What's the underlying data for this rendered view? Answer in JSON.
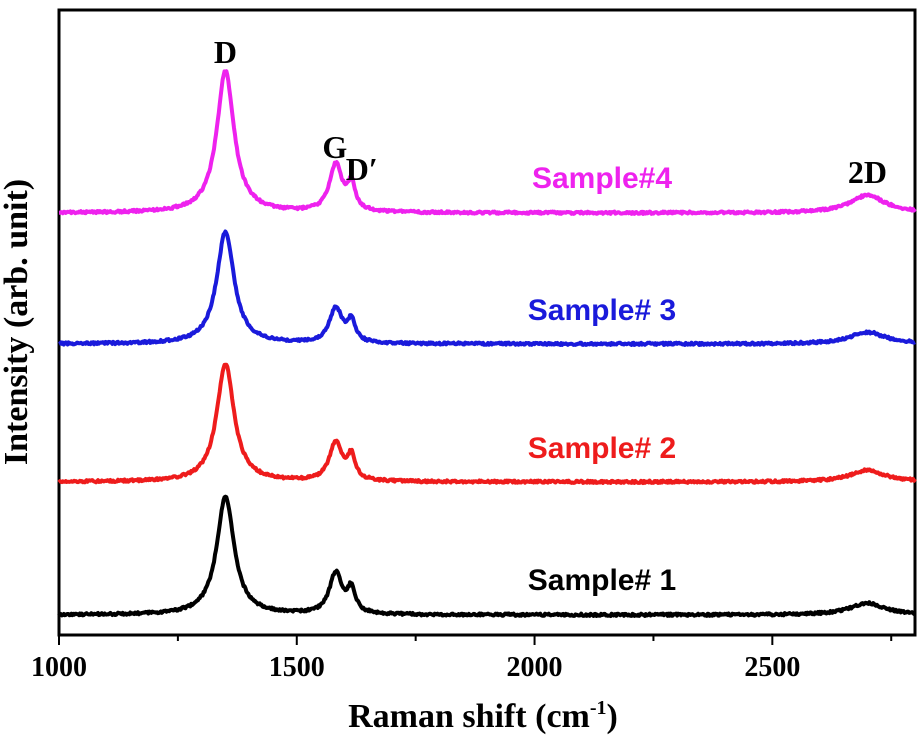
{
  "chart_data": {
    "type": "line",
    "title": "",
    "xlabel": "Raman shift (cm",
    "xlabel_sup": "-1",
    "xlabel_close": ")",
    "ylabel": "Intensity (arb. unit)",
    "xlim": [
      1000,
      2800
    ],
    "x_ticks": [
      1000,
      1500,
      2000,
      2500
    ],
    "x_tick_labels": [
      "1000",
      "1500",
      "2000",
      "2500"
    ],
    "y_ticks_shown": false,
    "grid": false,
    "legend": "inline labels",
    "peak_labels": [
      {
        "text": "D",
        "x": 1350
      },
      {
        "text": "G",
        "x": 1580
      },
      {
        "text": "D′",
        "x": 1620
      },
      {
        "text": "2D",
        "x": 2700
      }
    ],
    "peaks_cm-1": {
      "D": 1350,
      "G": 1582,
      "D_prime": 1615,
      "2D": 2700
    },
    "series": [
      {
        "name": "Sample# 1",
        "color": "#000000",
        "baseline": 0.0,
        "D": 1.0,
        "G": 0.35,
        "Dp": 0.2,
        "twoD": 0.1
      },
      {
        "name": "Sample# 2",
        "color": "#ee1c1c",
        "baseline": 1.1,
        "D": 1.0,
        "G": 0.33,
        "Dp": 0.2,
        "twoD": 0.1
      },
      {
        "name": "Sample# 3",
        "color": "#1a1adb",
        "baseline": 2.2,
        "D": 0.95,
        "G": 0.3,
        "Dp": 0.18,
        "twoD": 0.1
      },
      {
        "name": "Sample#4",
        "color": "#ee22ee",
        "baseline": 3.3,
        "D": 1.2,
        "G": 0.4,
        "Dp": 0.22,
        "twoD": 0.15
      }
    ]
  }
}
